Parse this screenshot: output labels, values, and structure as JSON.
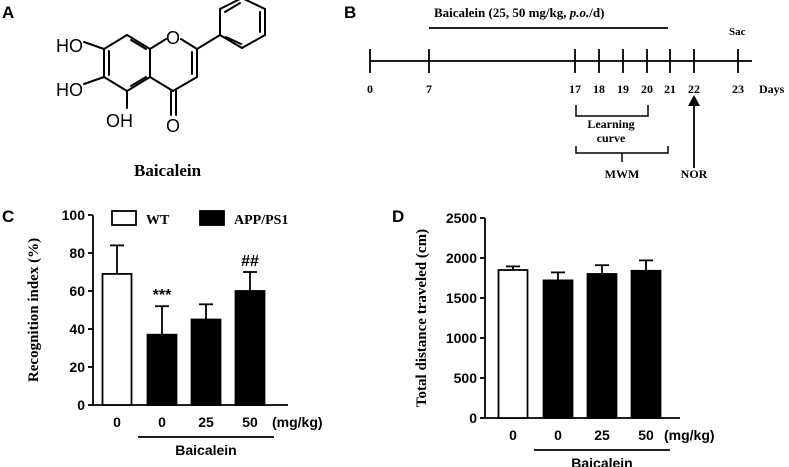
{
  "panels": {
    "A": {
      "label": "A",
      "atoms": {
        "ho1": "HO",
        "ho2": "HO",
        "oh": "OH",
        "ring_o": "O",
        "keto_o": "O"
      },
      "name": "Baicalein"
    },
    "B": {
      "label": "B",
      "treatment_prefix": "Baicalein (25, 50 mg/kg, ",
      "treatment_route": "p.o.",
      "treatment_suffix": "/d)",
      "days_label": "Days",
      "ticks": [
        "0",
        "7",
        "17",
        "18",
        "19",
        "20",
        "21",
        "22",
        "23"
      ],
      "sac_label": "Sac",
      "learning_label_1": "Learning",
      "learning_label_2": "curve",
      "mwm_label": "MWM",
      "nor_label": "NOR"
    }
  },
  "chart_data": [
    {
      "panel": "C",
      "type": "bar",
      "ylabel": "Recognition index (%)",
      "ylim": [
        0,
        100
      ],
      "yticks": [
        "0",
        "20",
        "40",
        "60",
        "80",
        "100"
      ],
      "categories": [
        "0",
        "0",
        "25",
        "50"
      ],
      "unit_label": "(mg/kg)",
      "group_label": "Baicalein",
      "values": [
        69,
        37,
        45,
        60
      ],
      "errors": [
        15,
        15,
        8,
        10
      ],
      "fills": [
        "white",
        "black",
        "black",
        "black"
      ],
      "significance": [
        "",
        "***",
        "",
        "##"
      ],
      "legend": [
        "WT",
        "APP/PS1"
      ],
      "legend_position": "top"
    },
    {
      "panel": "D",
      "type": "bar",
      "ylabel": "Total distance traveled (cm)",
      "ylim": [
        0,
        2500
      ],
      "yticks": [
        "0",
        "500",
        "1000",
        "1500",
        "2000",
        "2500"
      ],
      "categories": [
        "0",
        "0",
        "25",
        "50"
      ],
      "unit_label": "(mg/kg)",
      "group_label": "Baicalein",
      "values": [
        1850,
        1720,
        1800,
        1840
      ],
      "errors": [
        45,
        100,
        110,
        130
      ],
      "fills": [
        "white",
        "black",
        "black",
        "black"
      ]
    }
  ],
  "colors": {
    "ink": "#000000",
    "paper": "#ffffff"
  }
}
